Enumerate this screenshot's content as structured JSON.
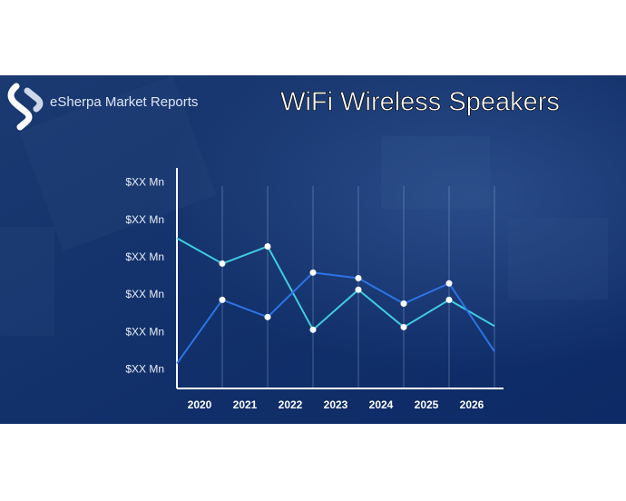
{
  "chart_data": {
    "type": "line",
    "title": "WiFi Wireless Speakers",
    "logo_text": "eSherpa Market Reports",
    "x": [
      2019.5,
      2020.5,
      2021.5,
      2022.5,
      2023.5,
      2024.5,
      2025.5,
      2026.5
    ],
    "xlim": [
      2019.5,
      2026.7
    ],
    "xticks": [
      2020,
      2021,
      2022,
      2023,
      2024,
      2025,
      2026
    ],
    "ylim": [
      0.5,
      6.4
    ],
    "yticks": [
      {
        "value": 1,
        "label": "$XX Mn"
      },
      {
        "value": 2,
        "label": "$XX Mn"
      },
      {
        "value": 3,
        "label": "$XX Mn"
      },
      {
        "value": 4,
        "label": "$XX Mn"
      },
      {
        "value": 5,
        "label": "$XX Mn"
      },
      {
        "value": 6,
        "label": "$XX Mn"
      }
    ],
    "series": [
      {
        "color": "#40cde0",
        "values": [
          4.52,
          3.84,
          4.3,
          2.07,
          3.14,
          2.14,
          2.87,
          2.17
        ]
      },
      {
        "color": "#2c74e6",
        "values": [
          1.17,
          2.87,
          2.41,
          3.6,
          3.45,
          2.77,
          3.31,
          1.49
        ]
      }
    ]
  }
}
